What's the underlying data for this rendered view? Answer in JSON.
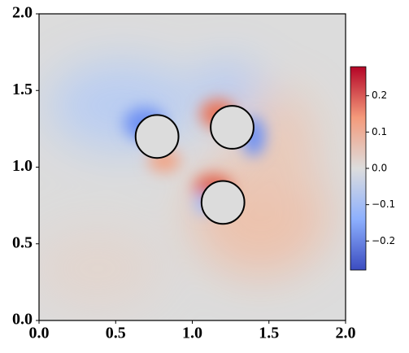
{
  "chart_data": {
    "type": "field",
    "xlim": [
      0,
      2
    ],
    "ylim": [
      0,
      2
    ],
    "xticks": [
      {
        "value": 0,
        "label": "0.0"
      },
      0.5,
      {
        "value": 1,
        "label": "1.0"
      },
      1.5,
      {
        "value": 2,
        "label": "2.0"
      }
    ],
    "yticks": [
      {
        "value": 0,
        "label": "0.0"
      },
      0.5,
      {
        "value": 1,
        "label": "1.0"
      },
      1.5,
      {
        "value": 2,
        "label": "2.0"
      }
    ],
    "circles": [
      {
        "x": 0.77,
        "y": 1.2,
        "r": 0.14
      },
      {
        "x": 1.26,
        "y": 1.26,
        "r": 0.14
      },
      {
        "x": 1.2,
        "y": 0.77,
        "r": 0.14
      }
    ],
    "colormap": "coolwarm",
    "clim": [
      -0.28,
      0.28
    ],
    "cticks": [
      {
        "value": -0.2,
        "label": "−0.2"
      },
      {
        "value": -0.1,
        "label": "−0.1"
      },
      {
        "value": 0,
        "label": "0.0"
      },
      0.1,
      0.2
    ]
  }
}
